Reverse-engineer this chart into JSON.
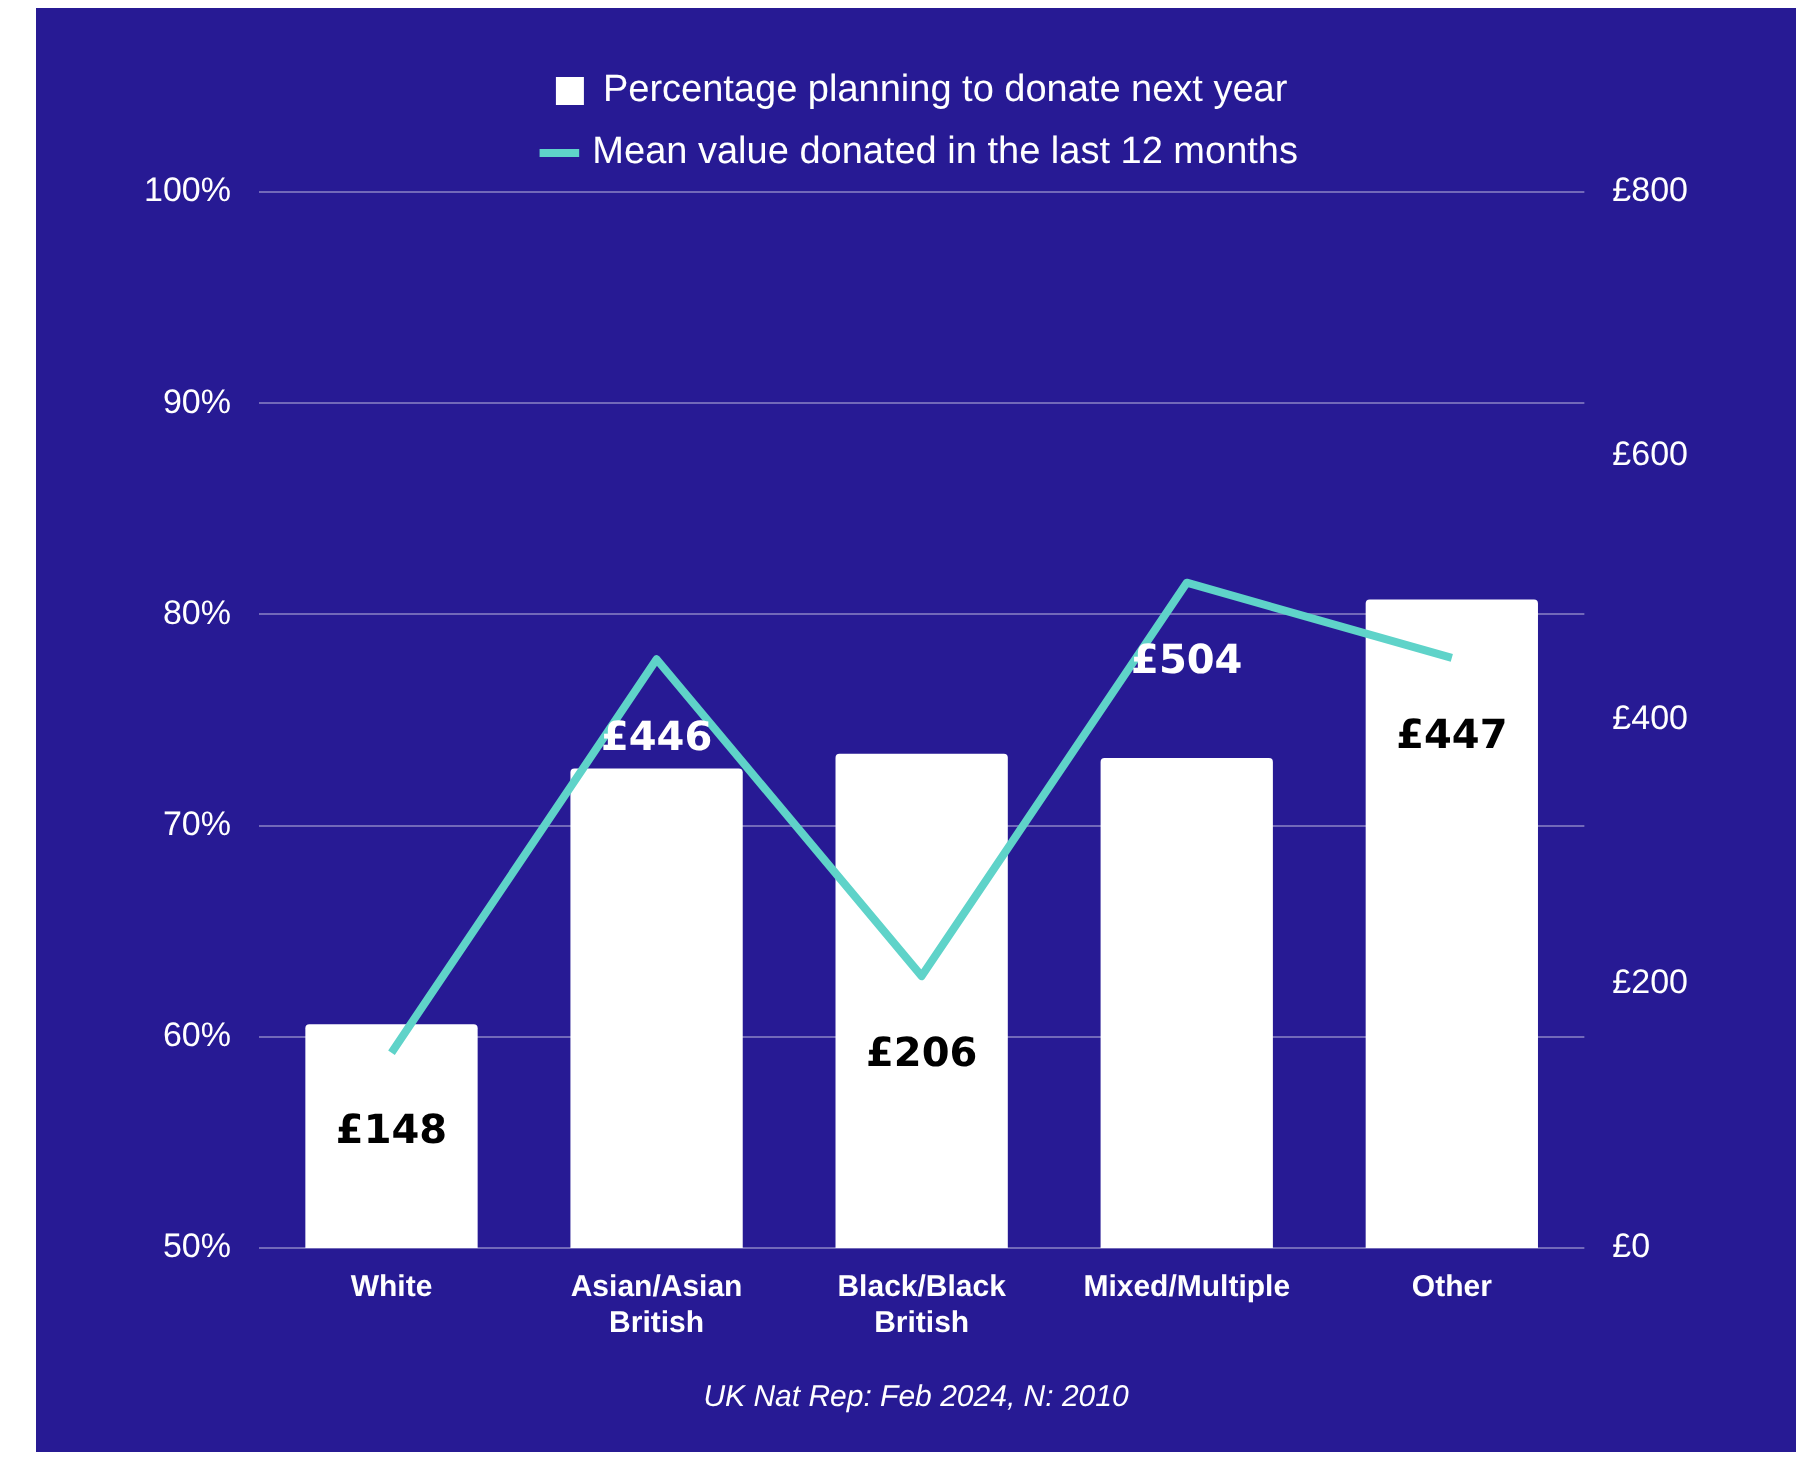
{
  "chart_data": {
    "type": "bar",
    "categories": [
      "White",
      "Asian/Asian British",
      "Black/Black British",
      "Mixed/Multiple",
      "Other"
    ],
    "series": [
      {
        "name": "Percentage planning to donate next year",
        "color": "#ffffff",
        "values": [
          60.6,
          72.7,
          73.4,
          73.2,
          80.7
        ]
      },
      {
        "name": "Mean value donated in the last 12 months",
        "type": "line",
        "axis": "y2",
        "color": "#5fd3c9",
        "values": [
          148,
          446,
          206,
          504,
          447
        ],
        "value_labels": [
          "£148",
          "£446",
          "£206",
          "£504",
          "£447"
        ]
      }
    ],
    "ylim": [
      50,
      100
    ],
    "yticks": [
      {
        "value": 50,
        "label": "50%"
      },
      {
        "value": 60,
        "label": "60%"
      },
      {
        "value": 70,
        "label": "70%"
      },
      {
        "value": 80,
        "label": "80%"
      },
      {
        "value": 90,
        "label": "90%"
      },
      {
        "value": 100,
        "label": "100%"
      }
    ],
    "y2lim": [
      0,
      800
    ],
    "y2ticks": [
      {
        "value": 0,
        "label": "£0"
      },
      {
        "value": 200,
        "label": "£200"
      },
      {
        "value": 400,
        "label": "£400"
      },
      {
        "value": 600,
        "label": "£600"
      },
      {
        "value": 800,
        "label": "£800"
      }
    ],
    "grid": "y",
    "legend": "top",
    "marker": "none",
    "annotations": [
      "UK Nat Rep: Feb 2024, N: 2010"
    ]
  }
}
